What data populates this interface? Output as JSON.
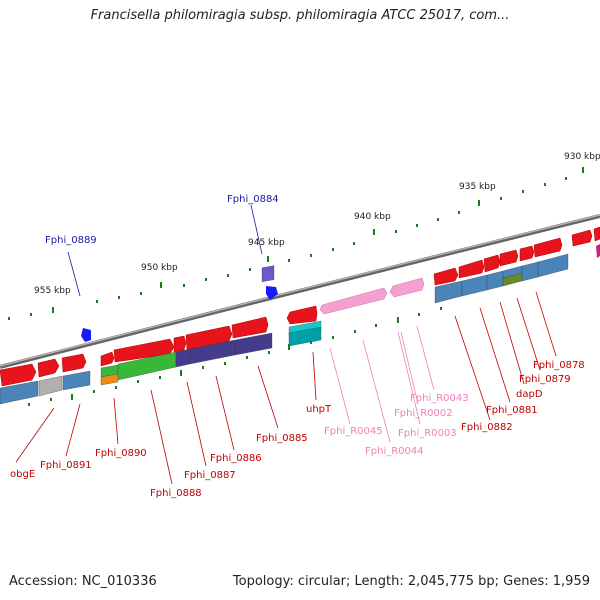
{
  "title": "Francisella philomiragia subsp. philomiragia ATCC 25017, com...",
  "footer": {
    "accession": "Accession: NC_010336",
    "summary": "Topology: circular; Length: 2,045,775 bp; Genes: 1,959"
  },
  "colors": {
    "forward_cds": "#e8141b",
    "reverse_cds_blue": "#4a84b8",
    "rna_pink": "#f4a0d0",
    "label_red": "#c00000",
    "label_pink": "#f080b8",
    "label_blue": "#1a1aa8",
    "tick_green": "#1e7a1e",
    "backbone": "#888888"
  },
  "scale_labels": [
    {
      "text": "930 kbp"
    },
    {
      "text": "935 kbp"
    },
    {
      "text": "940 kbp"
    },
    {
      "text": "945 kbp"
    },
    {
      "text": "950 kbp"
    },
    {
      "text": "955 kbp"
    }
  ],
  "gene_labels": [
    {
      "text": "obgE",
      "color": "red"
    },
    {
      "text": "Fphi_0891",
      "color": "red"
    },
    {
      "text": "Fphi_0890",
      "color": "red"
    },
    {
      "text": "Fphi_0888",
      "color": "red"
    },
    {
      "text": "Fphi_0887",
      "color": "red"
    },
    {
      "text": "Fphi_0886",
      "color": "red"
    },
    {
      "text": "Fphi_0885",
      "color": "red"
    },
    {
      "text": "uhpT",
      "color": "red"
    },
    {
      "text": "Fphi_R0045",
      "color": "pink"
    },
    {
      "text": "Fphi_R0044",
      "color": "pink"
    },
    {
      "text": "Fphi_R0003",
      "color": "pink"
    },
    {
      "text": "Fphi_R0002",
      "color": "pink"
    },
    {
      "text": "Fphi_R0043",
      "color": "pink"
    },
    {
      "text": "Fphi_0882",
      "color": "red"
    },
    {
      "text": "Fphi_0881",
      "color": "red"
    },
    {
      "text": "dapD",
      "color": "red"
    },
    {
      "text": "Fphi_0879",
      "color": "red"
    },
    {
      "text": "Fphi_0878",
      "color": "red"
    },
    {
      "text": "Fphi_0889",
      "color": "blue"
    },
    {
      "text": "Fphi_0884",
      "color": "blue"
    }
  ]
}
